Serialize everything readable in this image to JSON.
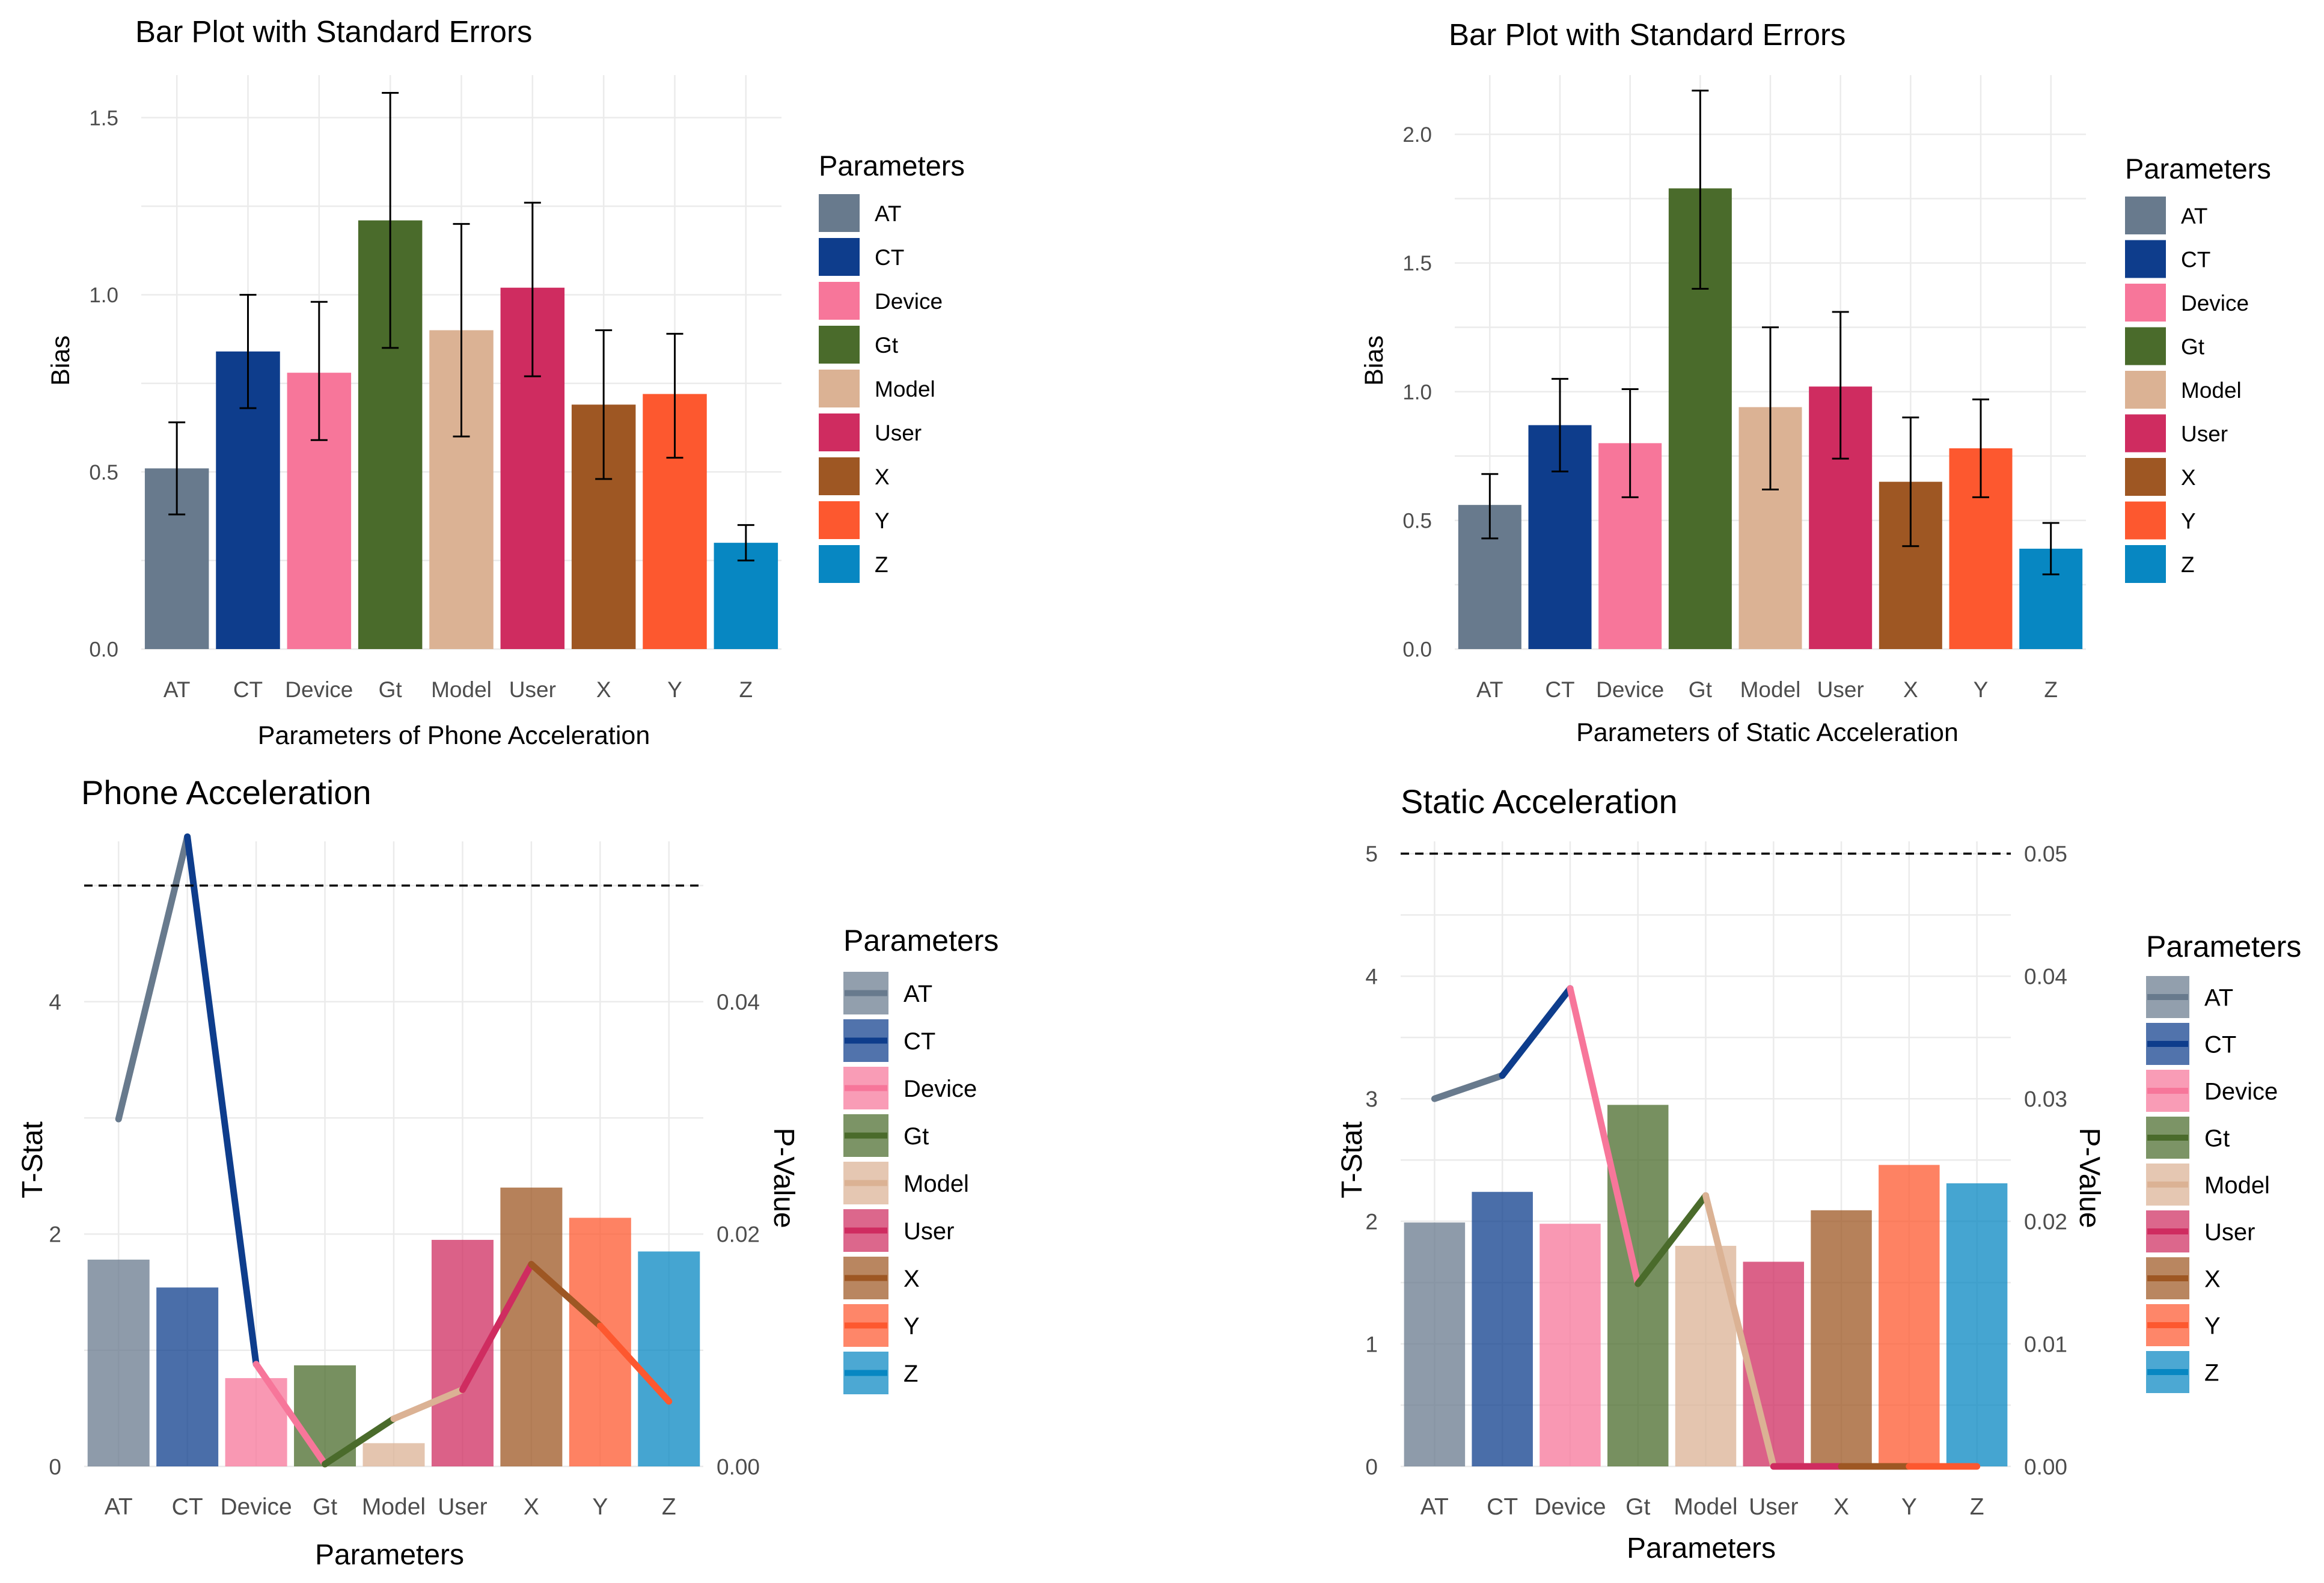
{
  "chart_data": [
    {
      "id": "p1",
      "type": "bar",
      "title": "Bar Plot with Standard Errors",
      "xlabel": "Parameters of Phone Acceleration",
      "ylabel": "Bias",
      "ylim": [
        0,
        1.62
      ],
      "yticks": [
        0.0,
        0.5,
        1.0,
        1.5
      ],
      "categories": [
        "AT",
        "CT",
        "Device",
        "Gt",
        "Model",
        "User",
        "X",
        "Y",
        "Z"
      ],
      "values": [
        0.51,
        0.84,
        0.78,
        1.21,
        0.9,
        1.02,
        0.69,
        0.72,
        0.3
      ],
      "errors_low": [
        0.38,
        0.68,
        0.59,
        0.85,
        0.6,
        0.77,
        0.48,
        0.54,
        0.25
      ],
      "errors_high": [
        0.64,
        1.0,
        0.98,
        1.57,
        1.2,
        1.26,
        0.9,
        0.89,
        0.35
      ],
      "legend_title": "Parameters",
      "legend_position": "right"
    },
    {
      "id": "p2",
      "type": "bar",
      "title": "Bar Plot with Standard Errors",
      "xlabel": "Parameters of Static Acceleration",
      "ylabel": "Bias",
      "ylim": [
        0,
        2.23
      ],
      "yticks": [
        0.0,
        0.5,
        1.0,
        1.5,
        2.0
      ],
      "categories": [
        "AT",
        "CT",
        "Device",
        "Gt",
        "Model",
        "User",
        "X",
        "Y",
        "Z"
      ],
      "values": [
        0.56,
        0.87,
        0.8,
        1.79,
        0.94,
        1.02,
        0.65,
        0.78,
        0.39
      ],
      "errors_low": [
        0.43,
        0.69,
        0.59,
        1.4,
        0.62,
        0.74,
        0.4,
        0.59,
        0.29
      ],
      "errors_high": [
        0.68,
        1.05,
        1.01,
        2.17,
        1.25,
        1.31,
        0.9,
        0.97,
        0.49
      ],
      "legend_title": "Parameters",
      "legend_position": "right"
    },
    {
      "id": "p3",
      "type": "bar+line",
      "title": "Phone Acceleration",
      "xlabel": "Parameters",
      "ylabel": "T-Stat",
      "ylabel_right": "P-Value",
      "ylim": [
        0,
        5.38
      ],
      "yticks": [
        0,
        2,
        4
      ],
      "yticks_right": [
        "0.00",
        "0.02",
        "0.04"
      ],
      "right_axis_scale": 0.01,
      "categories": [
        "AT",
        "CT",
        "Device",
        "Gt",
        "Model",
        "User",
        "X",
        "Y",
        "Z"
      ],
      "tstat": [
        1.78,
        1.54,
        0.76,
        0.87,
        0.2,
        1.95,
        2.4,
        2.14,
        1.85
      ],
      "pvalue": [
        0.0299,
        0.0542,
        0.0088,
        0.0002,
        0.0041,
        0.0066,
        0.0174,
        0.0121,
        0.0056
      ],
      "threshold": 5.0,
      "legend_title": "Parameters",
      "legend_position": "right"
    },
    {
      "id": "p4",
      "type": "bar+line",
      "title": "Static Acceleration",
      "xlabel": "Parameters",
      "ylabel": "T-Stat",
      "ylabel_right": "P-Value",
      "ylim": [
        0,
        5.1
      ],
      "yticks": [
        0,
        1,
        2,
        3,
        4,
        5
      ],
      "yticks_right": [
        "0.00",
        "0.01",
        "0.02",
        "0.03",
        "0.04",
        "0.05"
      ],
      "right_axis_scale": 0.01,
      "categories": [
        "AT",
        "CT",
        "Device",
        "Gt",
        "Model",
        "User",
        "X",
        "Y",
        "Z"
      ],
      "tstat": [
        1.99,
        2.24,
        1.98,
        2.95,
        1.8,
        1.67,
        2.09,
        2.46,
        2.31
      ],
      "pvalue": [
        0.03,
        0.0319,
        0.039,
        0.0149,
        0.0221,
        0.0,
        0.0,
        0.0,
        0.0
      ],
      "threshold": 5.0,
      "legend_title": "Parameters",
      "legend_position": "right"
    }
  ],
  "colors": {
    "AT": "#687a8d",
    "CT": "#0e3d8c",
    "Device": "#f7769a",
    "Gt": "#4a6b2b",
    "Model": "#dbb294",
    "User": "#cf2c60",
    "X": "#9e5723",
    "Y": "#fd582f",
    "Z": "#0787c2"
  }
}
